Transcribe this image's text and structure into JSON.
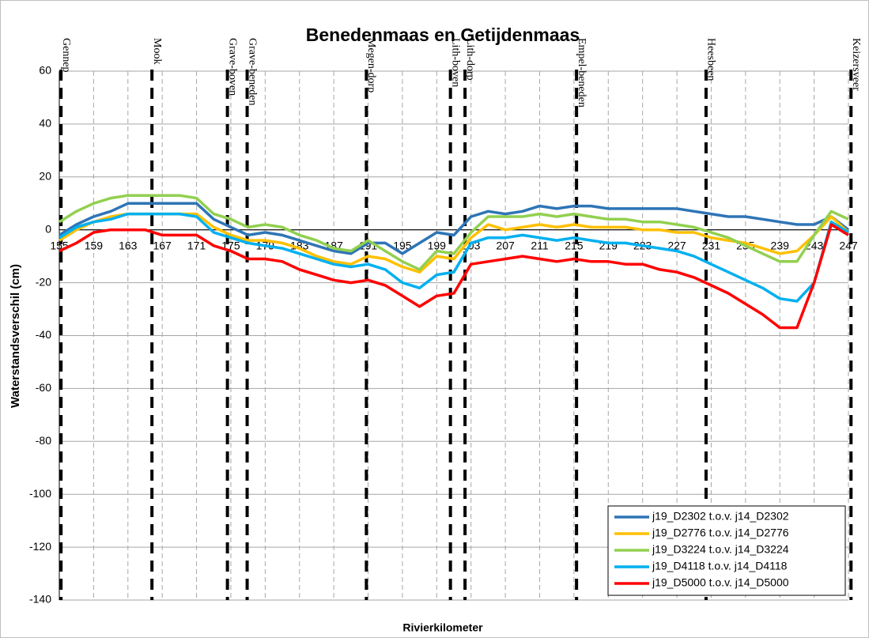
{
  "chart_data": {
    "type": "line",
    "title": "Benedenmaas en Getijdenmaas",
    "xlabel": "Rivierkilometer",
    "ylabel": "Waterstandsverschil (cm)",
    "x": [
      155,
      157,
      159,
      161,
      163,
      165,
      167,
      169,
      171,
      173,
      175,
      177,
      179,
      181,
      183,
      185,
      187,
      189,
      191,
      193,
      195,
      197,
      199,
      201,
      203,
      205,
      207,
      209,
      211,
      213,
      215,
      217,
      219,
      221,
      223,
      225,
      227,
      229,
      231,
      233,
      235,
      237,
      239,
      241,
      243,
      245,
      247
    ],
    "series": [
      {
        "name": "j19_D2302 t.o.v. j14_D2302",
        "color": "#2e75b6",
        "values": [
          -2,
          2,
          5,
          7,
          10,
          10,
          10,
          10,
          10,
          4,
          1,
          -2,
          -1,
          -2,
          -4,
          -6,
          -8,
          -9,
          -5,
          -5,
          -9,
          -5,
          -1,
          -2,
          5,
          7,
          6,
          7,
          9,
          8,
          9,
          9,
          8,
          8,
          8,
          8,
          8,
          7,
          6,
          5,
          5,
          4,
          3,
          2,
          2,
          5,
          0
        ]
      },
      {
        "name": "j19_D2776 t.o.v. j14_D2776",
        "color": "#ffc000",
        "values": [
          -4,
          0,
          3,
          5,
          6,
          6,
          6,
          6,
          6,
          1,
          -2,
          -4,
          -4,
          -5,
          -7,
          -10,
          -12,
          -13,
          -10,
          -11,
          -14,
          -16,
          -10,
          -11,
          -3,
          2,
          0,
          1,
          2,
          1,
          2,
          1,
          1,
          1,
          0,
          0,
          -1,
          -1,
          -3,
          -4,
          -5,
          -7,
          -9,
          -8,
          -2,
          5,
          -1
        ]
      },
      {
        "name": "j19_D3224 t.o.v. j14_D3224",
        "color": "#92d050",
        "values": [
          3,
          7,
          10,
          12,
          13,
          13,
          13,
          13,
          12,
          6,
          4,
          1,
          2,
          1,
          -2,
          -4,
          -7,
          -8,
          -4,
          -8,
          -12,
          -15,
          -8,
          -9,
          -1,
          5,
          5,
          5,
          6,
          5,
          6,
          5,
          4,
          4,
          3,
          3,
          2,
          1,
          -1,
          -3,
          -6,
          -9,
          -12,
          -12,
          -2,
          7,
          4
        ]
      },
      {
        "name": "j19_D4118 t.o.v. j14_D4118",
        "color": "#00b0f0",
        "values": [
          -3,
          1,
          3,
          4,
          6,
          6,
          6,
          6,
          5,
          -1,
          -3,
          -5,
          -6,
          -7,
          -9,
          -11,
          -13,
          -14,
          -13,
          -15,
          -20,
          -22,
          -17,
          -16,
          -5,
          -3,
          -3,
          -2,
          -3,
          -4,
          -3,
          -4,
          -5,
          -5,
          -6,
          -7,
          -8,
          -10,
          -13,
          -16,
          -19,
          -22,
          -26,
          -27,
          -20,
          3,
          -1
        ]
      },
      {
        "name": "j19_D5000 t.o.v. j14_D5000",
        "color": "#ff0000",
        "values": [
          -8,
          -5,
          -1,
          0,
          0,
          0,
          -2,
          -2,
          -2,
          -6,
          -8,
          -11,
          -11,
          -12,
          -15,
          -17,
          -19,
          -20,
          -19,
          -21,
          -25,
          -29,
          -25,
          -24,
          -13,
          -12,
          -11,
          -10,
          -11,
          -12,
          -11,
          -12,
          -12,
          -13,
          -13,
          -15,
          -16,
          -18,
          -21,
          -24,
          -28,
          -32,
          -37,
          -37,
          -20,
          2,
          -2
        ]
      }
    ],
    "markers": [
      {
        "label": "Gennep",
        "x": 155.2
      },
      {
        "label": "Mook",
        "x": 165.8
      },
      {
        "label": "Grave-boven",
        "x": 174.6
      },
      {
        "label": "Grave-beneden",
        "x": 176.9
      },
      {
        "label": "Megen-dorp",
        "x": 190.8
      },
      {
        "label": "Lith-boven",
        "x": 200.6
      },
      {
        "label": "Lith-dorp",
        "x": 202.3
      },
      {
        "label": "Empel-beneden",
        "x": 215.3
      },
      {
        "label": "Heesbeen",
        "x": 230.4
      },
      {
        "label": "Keizersveer",
        "x": 247.3
      }
    ],
    "xlim": [
      155,
      247
    ],
    "ylim": [
      -140,
      60
    ],
    "xticks": [
      155,
      159,
      163,
      167,
      171,
      175,
      179,
      183,
      187,
      191,
      195,
      199,
      203,
      207,
      211,
      215,
      219,
      223,
      227,
      231,
      235,
      239,
      243,
      247
    ],
    "yticks": [
      -140,
      -120,
      -100,
      -80,
      -60,
      -40,
      -20,
      0,
      20,
      40,
      60
    ],
    "grid": true,
    "legend": "lower right"
  }
}
